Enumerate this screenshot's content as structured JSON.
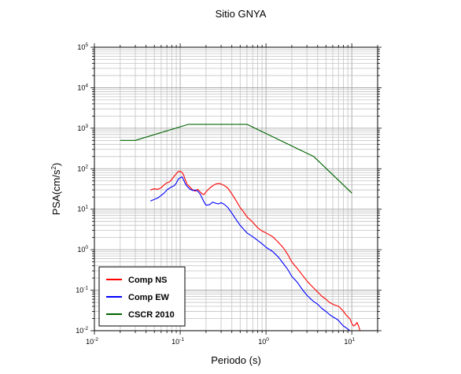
{
  "chart_data": {
    "type": "line",
    "title": "Sitio GNYA",
    "xlabel": "Periodo (s)",
    "ylabel": "PSA(cm/s",
    "ylabel_exp": "2",
    "ylabel_close": ")",
    "x_scale": "log",
    "y_scale": "log",
    "xlim": [
      0.01,
      20
    ],
    "ylim": [
      0.01,
      100000
    ],
    "grid": true,
    "legend_position": "bottom-left",
    "x_ticks": [
      {
        "base": "10",
        "exp": "-2",
        "value": 0.01
      },
      {
        "base": "10",
        "exp": "-1",
        "value": 0.1
      },
      {
        "base": "10",
        "exp": "0",
        "value": 1
      },
      {
        "base": "10",
        "exp": "1",
        "value": 10
      }
    ],
    "y_ticks": [
      {
        "base": "10",
        "exp": "-2",
        "value": 0.01
      },
      {
        "base": "10",
        "exp": "-1",
        "value": 0.1
      },
      {
        "base": "10",
        "exp": "0",
        "value": 1
      },
      {
        "base": "10",
        "exp": "1",
        "value": 10
      },
      {
        "base": "10",
        "exp": "2",
        "value": 100
      },
      {
        "base": "10",
        "exp": "3",
        "value": 1000
      },
      {
        "base": "10",
        "exp": "4",
        "value": 10000
      },
      {
        "base": "10",
        "exp": "5",
        "value": 100000
      }
    ],
    "series": [
      {
        "name": "Comp NS",
        "color": "#ff0000",
        "points": [
          [
            0.045,
            30
          ],
          [
            0.05,
            32
          ],
          [
            0.055,
            31
          ],
          [
            0.06,
            34
          ],
          [
            0.065,
            40
          ],
          [
            0.07,
            45
          ],
          [
            0.075,
            47
          ],
          [
            0.08,
            55
          ],
          [
            0.085,
            65
          ],
          [
            0.09,
            75
          ],
          [
            0.095,
            85
          ],
          [
            0.1,
            86
          ],
          [
            0.105,
            82
          ],
          [
            0.11,
            68
          ],
          [
            0.115,
            52
          ],
          [
            0.12,
            42
          ],
          [
            0.13,
            35
          ],
          [
            0.14,
            30
          ],
          [
            0.15,
            28
          ],
          [
            0.16,
            31
          ],
          [
            0.17,
            27
          ],
          [
            0.18,
            24
          ],
          [
            0.19,
            23
          ],
          [
            0.2,
            27
          ],
          [
            0.22,
            33
          ],
          [
            0.24,
            38
          ],
          [
            0.26,
            42
          ],
          [
            0.28,
            43
          ],
          [
            0.3,
            42
          ],
          [
            0.33,
            38
          ],
          [
            0.36,
            33
          ],
          [
            0.4,
            24
          ],
          [
            0.45,
            16
          ],
          [
            0.5,
            11
          ],
          [
            0.55,
            8.5
          ],
          [
            0.6,
            6.5
          ],
          [
            0.7,
            4.8
          ],
          [
            0.8,
            3.5
          ],
          [
            0.9,
            2.9
          ],
          [
            1.0,
            2.6
          ],
          [
            1.2,
            2.1
          ],
          [
            1.4,
            1.5
          ],
          [
            1.6,
            1.1
          ],
          [
            1.8,
            0.75
          ],
          [
            2.0,
            0.5
          ],
          [
            2.3,
            0.35
          ],
          [
            2.6,
            0.25
          ],
          [
            3.0,
            0.17
          ],
          [
            3.5,
            0.12
          ],
          [
            4.0,
            0.09
          ],
          [
            4.5,
            0.07
          ],
          [
            5.0,
            0.06
          ],
          [
            5.5,
            0.05
          ],
          [
            6.0,
            0.045
          ],
          [
            6.5,
            0.042
          ],
          [
            7.0,
            0.04
          ],
          [
            7.5,
            0.035
          ],
          [
            8.0,
            0.03
          ],
          [
            8.5,
            0.025
          ],
          [
            9.0,
            0.022
          ],
          [
            9.5,
            0.02
          ],
          [
            10.0,
            0.015
          ],
          [
            10.5,
            0.013
          ],
          [
            11.0,
            0.014
          ],
          [
            11.5,
            0.016
          ],
          [
            12.0,
            0.013
          ],
          [
            12.5,
            0.01
          ]
        ]
      },
      {
        "name": "Comp EW",
        "color": "#0000ff",
        "points": [
          [
            0.045,
            16
          ],
          [
            0.05,
            17.5
          ],
          [
            0.055,
            19
          ],
          [
            0.06,
            22
          ],
          [
            0.065,
            25
          ],
          [
            0.07,
            30
          ],
          [
            0.075,
            33
          ],
          [
            0.08,
            36
          ],
          [
            0.085,
            38
          ],
          [
            0.09,
            44
          ],
          [
            0.095,
            55
          ],
          [
            0.1,
            60
          ],
          [
            0.105,
            63
          ],
          [
            0.11,
            52
          ],
          [
            0.115,
            42
          ],
          [
            0.12,
            37
          ],
          [
            0.13,
            31
          ],
          [
            0.14,
            29
          ],
          [
            0.15,
            30
          ],
          [
            0.16,
            28
          ],
          [
            0.17,
            24
          ],
          [
            0.18,
            19
          ],
          [
            0.19,
            15
          ],
          [
            0.2,
            12.5
          ],
          [
            0.22,
            13
          ],
          [
            0.24,
            15
          ],
          [
            0.26,
            14
          ],
          [
            0.28,
            13.5
          ],
          [
            0.3,
            14.5
          ],
          [
            0.33,
            13
          ],
          [
            0.36,
            11
          ],
          [
            0.4,
            8
          ],
          [
            0.45,
            5.5
          ],
          [
            0.5,
            4
          ],
          [
            0.55,
            3.2
          ],
          [
            0.6,
            2.6
          ],
          [
            0.7,
            2.1
          ],
          [
            0.8,
            1.7
          ],
          [
            0.9,
            1.4
          ],
          [
            1.0,
            1.15
          ],
          [
            1.2,
            0.9
          ],
          [
            1.4,
            0.65
          ],
          [
            1.6,
            0.45
          ],
          [
            1.8,
            0.32
          ],
          [
            2.0,
            0.22
          ],
          [
            2.3,
            0.16
          ],
          [
            2.6,
            0.11
          ],
          [
            3.0,
            0.075
          ],
          [
            3.5,
            0.055
          ],
          [
            4.0,
            0.045
          ],
          [
            4.5,
            0.035
          ],
          [
            5.0,
            0.03
          ],
          [
            5.5,
            0.025
          ],
          [
            6.0,
            0.022
          ],
          [
            6.5,
            0.02
          ],
          [
            7.0,
            0.018
          ],
          [
            7.5,
            0.015
          ],
          [
            8.0,
            0.013
          ],
          [
            8.5,
            0.012
          ],
          [
            9.0,
            0.011
          ],
          [
            9.5,
            0.01
          ],
          [
            10.0,
            0.009
          ],
          [
            10.5,
            0.008
          ],
          [
            11.0,
            0.007
          ],
          [
            11.5,
            0.006
          ],
          [
            12.0,
            0.005
          ]
        ]
      },
      {
        "name": "CSCR 2010",
        "color": "#006400",
        "points": [
          [
            0.02,
            500
          ],
          [
            0.03,
            500
          ],
          [
            0.125,
            1250
          ],
          [
            0.6,
            1250
          ],
          [
            3.6,
            200
          ],
          [
            10.0,
            25
          ]
        ]
      }
    ]
  }
}
